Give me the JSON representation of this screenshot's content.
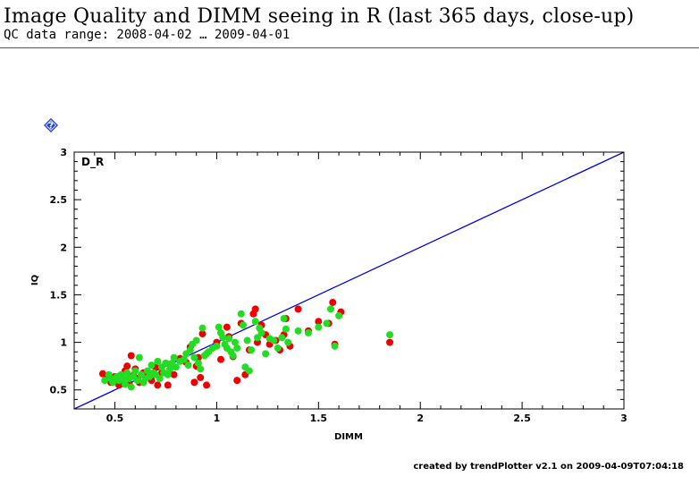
{
  "header": {
    "title": "Image Quality and DIMM seeing in R (last 365 days, close-up)",
    "subtitle": "QC data range: 2008-04-02 … 2009-04-01"
  },
  "help_icon": {
    "icon": "help-diamond-icon",
    "glyph": "?",
    "color": "#1f3fd6"
  },
  "footer": {
    "text": "created by trendPlotter v2.1 on 2009-04-09T07:04:18"
  },
  "chart_data": {
    "type": "scatter",
    "panel_label": "D_R",
    "xlabel": "DIMM",
    "ylabel": "IQ",
    "xlim": [
      0.3,
      3.0
    ],
    "ylim": [
      0.3,
      3.0
    ],
    "x_ticks": [
      0.5,
      1,
      1.5,
      2,
      2.5,
      3
    ],
    "x_tick_labels": [
      "0.5",
      "1",
      "1.5",
      "2",
      "2.5",
      "3"
    ],
    "y_ticks": [
      0.5,
      1,
      1.5,
      2,
      2.5,
      3
    ],
    "y_tick_labels": [
      "0.5",
      "1",
      "1.5",
      "2",
      "2.5",
      "3"
    ],
    "grid": false,
    "reference_line": {
      "type": "identity",
      "from": [
        0.3,
        0.3
      ],
      "to": [
        3.0,
        3.0
      ],
      "color": "#0000dd"
    },
    "series": [
      {
        "color": "#ee0000",
        "points": [
          [
            0.44,
            0.67
          ],
          [
            0.46,
            0.62
          ],
          [
            0.48,
            0.58
          ],
          [
            0.5,
            0.64
          ],
          [
            0.52,
            0.55
          ],
          [
            0.53,
            0.6
          ],
          [
            0.55,
            0.7
          ],
          [
            0.56,
            0.75
          ],
          [
            0.57,
            0.57
          ],
          [
            0.58,
            0.86
          ],
          [
            0.59,
            0.65
          ],
          [
            0.6,
            0.72
          ],
          [
            0.61,
            0.62
          ],
          [
            0.62,
            0.58
          ],
          [
            0.64,
            0.68
          ],
          [
            0.66,
            0.64
          ],
          [
            0.68,
            0.6
          ],
          [
            0.7,
            0.74
          ],
          [
            0.71,
            0.55
          ],
          [
            0.73,
            0.68
          ],
          [
            0.75,
            0.78
          ],
          [
            0.76,
            0.55
          ],
          [
            0.79,
            0.66
          ],
          [
            0.82,
            0.83
          ],
          [
            0.85,
            0.79
          ],
          [
            0.87,
            0.95
          ],
          [
            0.89,
            0.58
          ],
          [
            0.9,
            0.75
          ],
          [
            0.91,
            0.84
          ],
          [
            0.92,
            0.63
          ],
          [
            0.93,
            1.09
          ],
          [
            0.95,
            0.55
          ],
          [
            1.0,
            1.0
          ],
          [
            1.02,
            0.82
          ],
          [
            1.05,
            1.16
          ],
          [
            1.06,
            1.06
          ],
          [
            1.08,
            0.85
          ],
          [
            1.1,
            0.6
          ],
          [
            1.12,
            1.2
          ],
          [
            1.14,
            0.66
          ],
          [
            1.16,
            0.92
          ],
          [
            1.18,
            1.3
          ],
          [
            1.19,
            1.35
          ],
          [
            1.2,
            1.0
          ],
          [
            1.22,
            1.18
          ],
          [
            1.24,
            1.08
          ],
          [
            1.26,
            0.98
          ],
          [
            1.29,
            1.02
          ],
          [
            1.31,
            0.92
          ],
          [
            1.33,
            1.08
          ],
          [
            1.34,
            1.25
          ],
          [
            1.36,
            0.96
          ],
          [
            1.4,
            1.35
          ],
          [
            1.45,
            1.12
          ],
          [
            1.5,
            1.22
          ],
          [
            1.55,
            1.2
          ],
          [
            1.57,
            1.42
          ],
          [
            1.58,
            0.98
          ],
          [
            1.61,
            1.32
          ],
          [
            1.85,
            1.0
          ]
        ]
      },
      {
        "color": "#22dd22",
        "points": [
          [
            0.45,
            0.6
          ],
          [
            0.47,
            0.66
          ],
          [
            0.48,
            0.62
          ],
          [
            0.49,
            0.58
          ],
          [
            0.51,
            0.64
          ],
          [
            0.52,
            0.6
          ],
          [
            0.53,
            0.66
          ],
          [
            0.54,
            0.62
          ],
          [
            0.55,
            0.56
          ],
          [
            0.56,
            0.68
          ],
          [
            0.57,
            0.62
          ],
          [
            0.58,
            0.53
          ],
          [
            0.59,
            0.64
          ],
          [
            0.6,
            0.7
          ],
          [
            0.61,
            0.6
          ],
          [
            0.62,
            0.84
          ],
          [
            0.63,
            0.66
          ],
          [
            0.64,
            0.58
          ],
          [
            0.65,
            0.62
          ],
          [
            0.66,
            0.7
          ],
          [
            0.67,
            0.64
          ],
          [
            0.68,
            0.76
          ],
          [
            0.69,
            0.68
          ],
          [
            0.7,
            0.66
          ],
          [
            0.71,
            0.8
          ],
          [
            0.72,
            0.62
          ],
          [
            0.73,
            0.74
          ],
          [
            0.74,
            0.68
          ],
          [
            0.75,
            0.78
          ],
          [
            0.76,
            0.66
          ],
          [
            0.77,
            0.72
          ],
          [
            0.78,
            0.78
          ],
          [
            0.79,
            0.84
          ],
          [
            0.8,
            0.74
          ],
          [
            0.82,
            0.8
          ],
          [
            0.84,
            0.82
          ],
          [
            0.85,
            0.88
          ],
          [
            0.86,
            0.76
          ],
          [
            0.87,
            0.92
          ],
          [
            0.88,
            0.98
          ],
          [
            0.89,
            0.84
          ],
          [
            0.9,
            1.02
          ],
          [
            0.91,
            0.78
          ],
          [
            0.92,
            0.72
          ],
          [
            0.93,
            1.15
          ],
          [
            0.94,
            0.86
          ],
          [
            0.95,
            0.88
          ],
          [
            0.96,
            0.9
          ],
          [
            0.98,
            0.94
          ],
          [
            1.0,
            0.96
          ],
          [
            1.01,
            1.16
          ],
          [
            1.02,
            1.1
          ],
          [
            1.03,
            1.05
          ],
          [
            1.04,
            0.98
          ],
          [
            1.05,
            0.94
          ],
          [
            1.06,
            1.04
          ],
          [
            1.07,
            0.9
          ],
          [
            1.08,
            0.86
          ],
          [
            1.09,
            1.0
          ],
          [
            1.1,
            0.94
          ],
          [
            1.12,
            1.3
          ],
          [
            1.13,
            1.18
          ],
          [
            1.14,
            0.74
          ],
          [
            1.15,
            1.02
          ],
          [
            1.16,
            0.7
          ],
          [
            1.17,
            0.92
          ],
          [
            1.19,
            1.22
          ],
          [
            1.2,
            1.05
          ],
          [
            1.21,
            1.15
          ],
          [
            1.22,
            1.1
          ],
          [
            1.24,
            0.88
          ],
          [
            1.26,
            1.04
          ],
          [
            1.28,
            1.02
          ],
          [
            1.3,
            0.94
          ],
          [
            1.32,
            1.05
          ],
          [
            1.33,
            1.25
          ],
          [
            1.34,
            1.14
          ],
          [
            1.35,
            1.0
          ],
          [
            1.4,
            1.12
          ],
          [
            1.45,
            1.1
          ],
          [
            1.5,
            1.16
          ],
          [
            1.54,
            1.2
          ],
          [
            1.56,
            1.35
          ],
          [
            1.58,
            0.96
          ],
          [
            1.6,
            1.28
          ],
          [
            1.85,
            1.08
          ]
        ]
      }
    ]
  }
}
